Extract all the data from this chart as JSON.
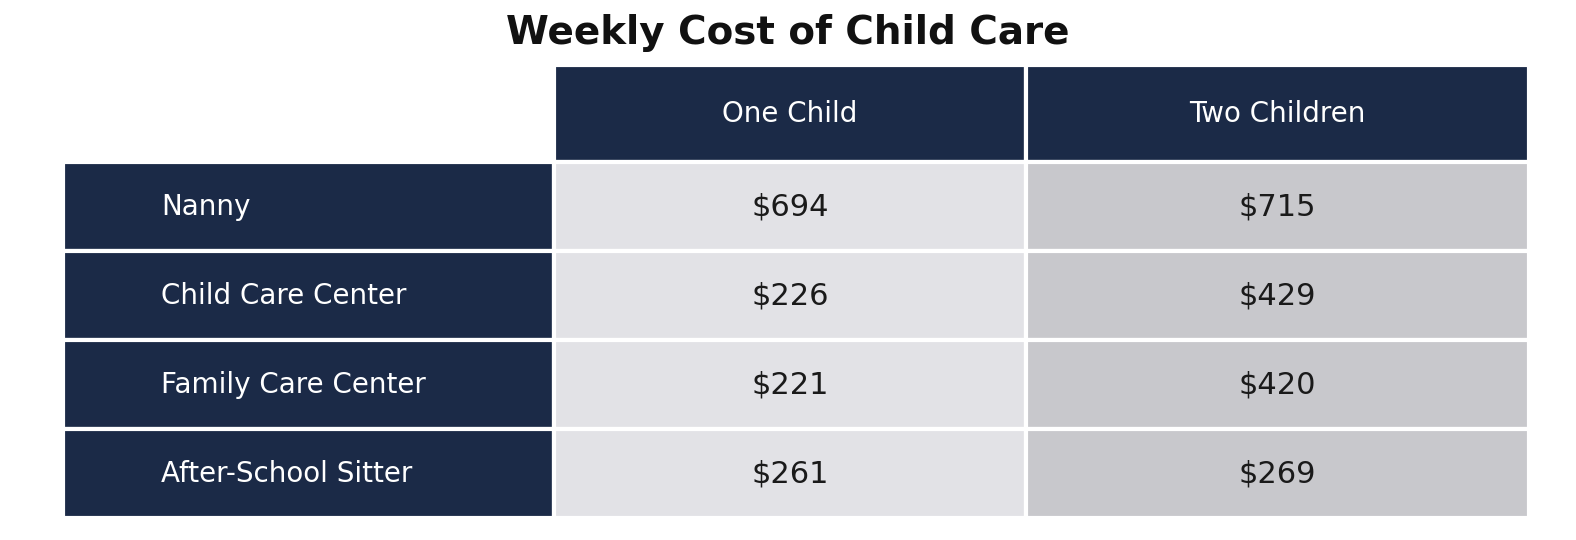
{
  "title": "Weekly Cost of Child Care",
  "title_fontsize": 28,
  "title_fontweight": "bold",
  "col_headers": [
    "One Child",
    "Two Children"
  ],
  "row_labels": [
    "Nanny",
    "Child Care Center",
    "Family Care Center",
    "After-School Sitter"
  ],
  "one_child": [
    "$694",
    "$226",
    "$221",
    "$261"
  ],
  "two_children": [
    "$715",
    "$429",
    "$420",
    "$269"
  ],
  "header_bg": "#1b2a47",
  "header_text_color": "#ffffff",
  "row_label_bg": "#1b2a47",
  "row_label_text_color": "#ffffff",
  "col1_bg": "#e2e2e6",
  "col2_bg": "#c8c8cc",
  "cell_text_color": "#1a1a1a",
  "bg_color": "#ffffff",
  "row_label_fontsize": 20,
  "col_header_fontsize": 20,
  "cell_fontsize": 22,
  "border_color": "#ffffff",
  "border_lw": 3
}
